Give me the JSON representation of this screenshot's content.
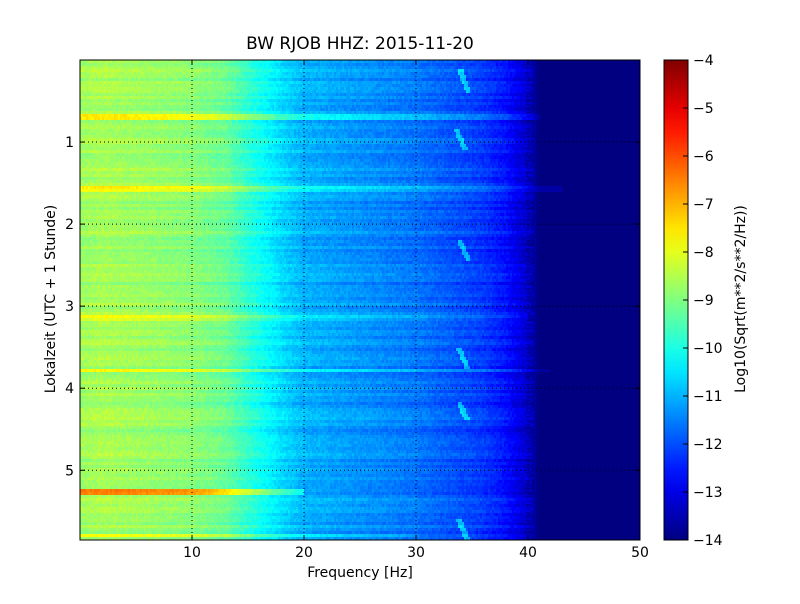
{
  "chart_data": {
    "type": "heatmap",
    "title": "BW RJOB HHZ: 2015-11-20",
    "xlabel": "Frequency [Hz]",
    "ylabel": "Lokalzeit (UTC + 1 Stunde)",
    "xlim": [
      0,
      50
    ],
    "ylim": [
      5.85,
      0
    ],
    "x_ticks": [
      10,
      20,
      30,
      40,
      50
    ],
    "y_ticks": [
      1,
      2,
      3,
      4,
      5
    ],
    "grid": true,
    "colormap": "jet",
    "colorbar": {
      "label": "Log10(Sqrt(m**2/s**2/Hz))",
      "min": -14,
      "max": -4,
      "ticks": [
        -4,
        -5,
        -6,
        -7,
        -8,
        -9,
        -10,
        -11,
        -12,
        -13,
        -14
      ]
    },
    "typical_level_profile": {
      "frequency_hz": [
        0,
        2,
        5,
        10,
        13,
        15,
        18,
        20,
        25,
        30,
        33,
        36,
        38,
        40,
        41,
        50
      ],
      "log10_amplitude": [
        -8.7,
        -8.6,
        -8.7,
        -8.9,
        -9.2,
        -9.8,
        -10.6,
        -11.0,
        -11.3,
        -11.6,
        -11.9,
        -12.2,
        -12.6,
        -13.3,
        -14.0,
        -14.0
      ]
    },
    "band_features": [
      {
        "frequency_hz": [
          0,
          41
        ],
        "time_h": 0.7,
        "delta_log10": 0.9
      },
      {
        "frequency_hz": [
          0,
          43
        ],
        "time_h": 1.58,
        "delta_log10": 0.9
      },
      {
        "frequency_hz": [
          0,
          40
        ],
        "time_h": 3.15,
        "delta_log10": 0.8
      },
      {
        "frequency_hz": [
          0,
          42
        ],
        "time_h": 3.78,
        "delta_log10": 0.7
      },
      {
        "frequency_hz": [
          0,
          20
        ],
        "time_h": 5.27,
        "delta_log10": 2.3
      },
      {
        "frequency_hz": [
          0,
          30
        ],
        "time_h": 5.8,
        "delta_log10": 0.8
      }
    ],
    "line_features": [
      {
        "frequency_hz": 34.3,
        "time_h": [
          0.1,
          0.4
        ],
        "delta_log10": 1.2
      },
      {
        "frequency_hz": 34.0,
        "time_h": [
          0.85,
          1.1
        ],
        "delta_log10": 1.2
      },
      {
        "frequency_hz": 34.3,
        "time_h": [
          2.2,
          2.45
        ],
        "delta_log10": 1.2
      },
      {
        "frequency_hz": 34.2,
        "time_h": [
          3.5,
          3.75
        ],
        "delta_log10": 1.2
      },
      {
        "frequency_hz": 34.2,
        "time_h": [
          4.15,
          4.4
        ],
        "delta_log10": 1.2
      },
      {
        "frequency_hz": 34.2,
        "time_h": [
          5.6,
          5.85
        ],
        "delta_log10": 1.2
      }
    ]
  }
}
